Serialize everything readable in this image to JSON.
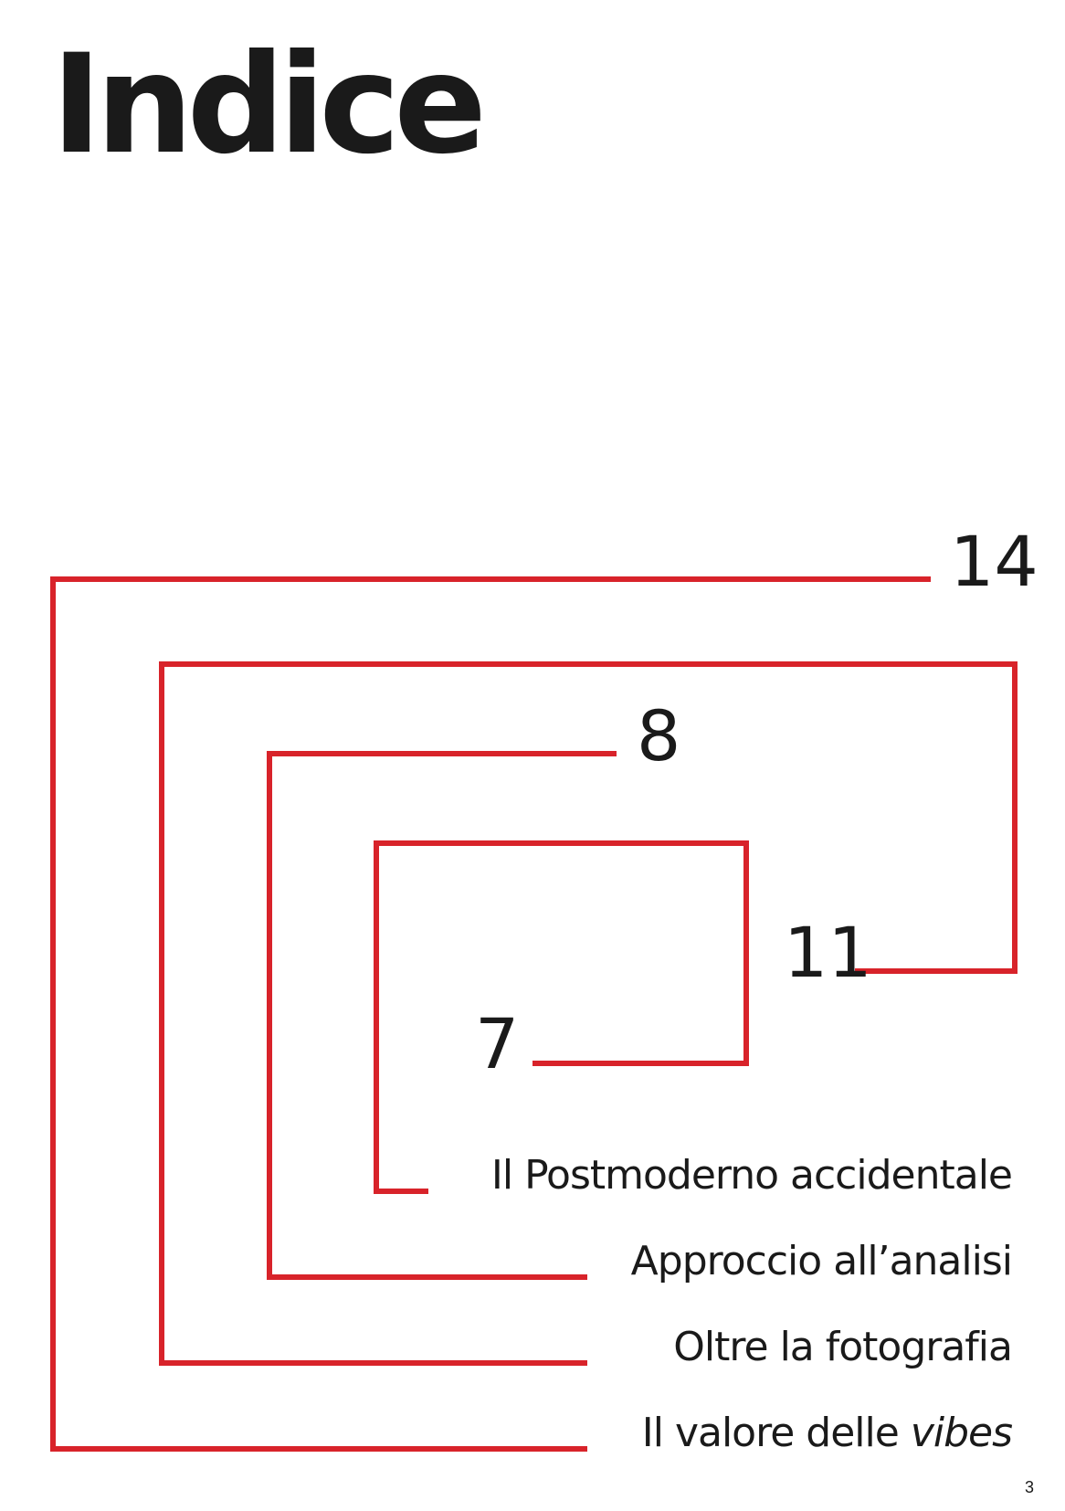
{
  "title": "Indice",
  "accent_color": "#d8232a",
  "entries": [
    {
      "page": "7",
      "label": "Il Postmoderno accidentale"
    },
    {
      "page": "8",
      "label": "Approccio all’analisi"
    },
    {
      "page": "11",
      "label": "Oltre la fotografia"
    },
    {
      "page": "14",
      "label": "Il valore delle",
      "label_italic": "vibes"
    }
  ],
  "page_number": "3"
}
